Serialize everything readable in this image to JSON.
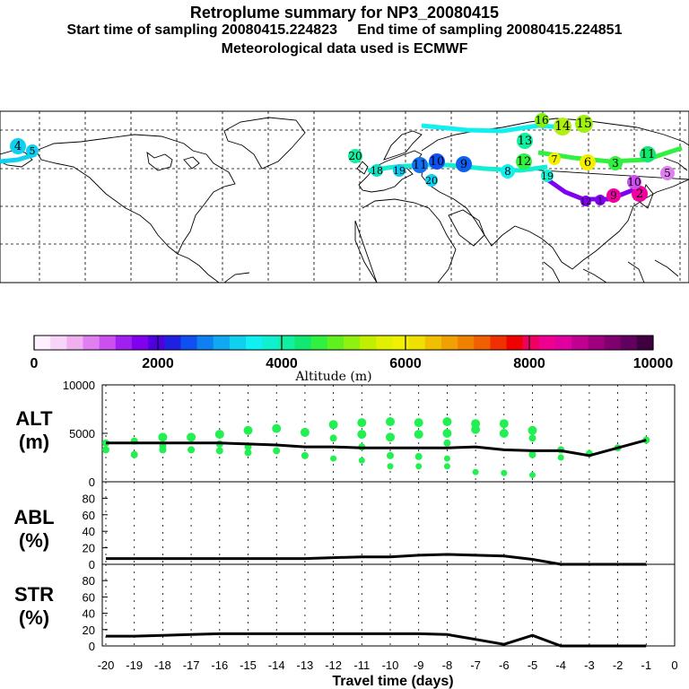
{
  "header": {
    "title": "Retroplume summary for NP3_20080415",
    "sampling_line": "Start time of sampling 20080415.224823     End time of sampling 20080415.224851",
    "met_line": "Meteorological data used is ECMWF"
  },
  "colorbar": {
    "label": "Altitude (m)",
    "ticks": [
      "0",
      "2000",
      "4000",
      "6000",
      "8000",
      "10000"
    ],
    "min": 0,
    "max": 10000,
    "colors": [
      "#fff0ff",
      "#f8d4f8",
      "#f0b0f0",
      "#e080f0",
      "#cc50f0",
      "#a020f0",
      "#8000f0",
      "#5000e0",
      "#2020e0",
      "#1050f0",
      "#1080f0",
      "#10a8f0",
      "#10d0f0",
      "#10f0f0",
      "#10f0d0",
      "#10f0a0",
      "#10e870",
      "#30f040",
      "#60f020",
      "#90f010",
      "#c0f000",
      "#e0f000",
      "#f0f000",
      "#f0e000",
      "#f0c000",
      "#f0a000",
      "#f08000",
      "#f06000",
      "#f03000",
      "#f00000",
      "#f00060",
      "#f00090",
      "#e000a0",
      "#c00090",
      "#a00080",
      "#800070",
      "#600060",
      "#400040"
    ]
  },
  "map": {
    "markers": [
      {
        "label": "4",
        "color": "#10d0f0"
      },
      {
        "label": "5",
        "color": "#10d0f0"
      },
      {
        "label": "20",
        "color": "#10f0a0"
      },
      {
        "label": "18",
        "color": "#10e0c0"
      },
      {
        "label": "19",
        "color": "#10c8f0"
      },
      {
        "label": "11",
        "color": "#1070f0"
      },
      {
        "label": "10",
        "color": "#1050f0"
      },
      {
        "label": "9",
        "color": "#1060f0"
      },
      {
        "label": "20",
        "color": "#10d0f0"
      },
      {
        "label": "16",
        "color": "#80f010"
      },
      {
        "label": "14",
        "color": "#b0f010"
      },
      {
        "label": "15",
        "color": "#a0f010"
      },
      {
        "label": "13",
        "color": "#10f0a0"
      },
      {
        "label": "12",
        "color": "#30f040"
      },
      {
        "label": "8",
        "color": "#10f0f0"
      },
      {
        "label": "7",
        "color": "#f0f000"
      },
      {
        "label": "6",
        "color": "#f0f000"
      },
      {
        "label": "3",
        "color": "#30f040"
      },
      {
        "label": "11",
        "color": "#10e870"
      },
      {
        "label": "9",
        "color": "#f000a0"
      },
      {
        "label": "2",
        "color": "#f000a0"
      },
      {
        "label": "10",
        "color": "#cc50f0"
      },
      {
        "label": "1",
        "color": "#8000f0"
      },
      {
        "label": "12",
        "color": "#8000f0"
      },
      {
        "label": "5",
        "color": "#e080f0"
      },
      {
        "label": "19",
        "color": "#10f0d0"
      }
    ]
  },
  "chart_data": [
    {
      "type": "scatter",
      "panel": "ALT",
      "ylabel": "ALT\n(m)",
      "ylim": [
        0,
        10000
      ],
      "yticks": [
        "10000",
        "5000",
        "0"
      ],
      "xlim": [
        -20,
        0
      ],
      "median_line": {
        "x": [
          -20,
          -19,
          -18,
          -17,
          -16,
          -15,
          -14,
          -13,
          -12,
          -11,
          -10,
          -9,
          -8,
          -7,
          -6,
          -5,
          -4,
          -3,
          -2,
          -1
        ],
        "y": [
          4000,
          4000,
          4000,
          4000,
          4000,
          3900,
          3800,
          3600,
          3600,
          3500,
          3500,
          3500,
          3500,
          3600,
          3300,
          3200,
          3200,
          2700,
          3500,
          4300
        ]
      },
      "points": [
        {
          "x": -20,
          "y": 4000
        },
        {
          "x": -20,
          "y": 3300
        },
        {
          "x": -19,
          "y": 4200
        },
        {
          "x": -19,
          "y": 2800
        },
        {
          "x": -18,
          "y": 4600
        },
        {
          "x": -18,
          "y": 3700
        },
        {
          "x": -18,
          "y": 3300
        },
        {
          "x": -17,
          "y": 4600
        },
        {
          "x": -17,
          "y": 3300
        },
        {
          "x": -16,
          "y": 4900
        },
        {
          "x": -16,
          "y": 3900
        },
        {
          "x": -16,
          "y": 3200
        },
        {
          "x": -15,
          "y": 5300
        },
        {
          "x": -15,
          "y": 3600
        },
        {
          "x": -15,
          "y": 3000
        },
        {
          "x": -14,
          "y": 5500
        },
        {
          "x": -14,
          "y": 3200
        },
        {
          "x": -13,
          "y": 5100
        },
        {
          "x": -13,
          "y": 2700
        },
        {
          "x": -12,
          "y": 5900
        },
        {
          "x": -12,
          "y": 4500
        },
        {
          "x": -12,
          "y": 2400
        },
        {
          "x": -11,
          "y": 6100
        },
        {
          "x": -11,
          "y": 4900
        },
        {
          "x": -11,
          "y": 3600
        },
        {
          "x": -11,
          "y": 2200
        },
        {
          "x": -10,
          "y": 6200
        },
        {
          "x": -10,
          "y": 4600
        },
        {
          "x": -10,
          "y": 2700
        },
        {
          "x": -10,
          "y": 1600
        },
        {
          "x": -9,
          "y": 6100
        },
        {
          "x": -9,
          "y": 4900
        },
        {
          "x": -9,
          "y": 2600
        },
        {
          "x": -9,
          "y": 1600
        },
        {
          "x": -8,
          "y": 6200
        },
        {
          "x": -8,
          "y": 5000
        },
        {
          "x": -8,
          "y": 4000
        },
        {
          "x": -8,
          "y": 2400
        },
        {
          "x": -8,
          "y": 1600
        },
        {
          "x": -7,
          "y": 6000
        },
        {
          "x": -7,
          "y": 5400
        },
        {
          "x": -7,
          "y": 1000
        },
        {
          "x": -6,
          "y": 6000
        },
        {
          "x": -6,
          "y": 5000
        },
        {
          "x": -6,
          "y": 900
        },
        {
          "x": -5,
          "y": 5300
        },
        {
          "x": -5,
          "y": 4500
        },
        {
          "x": -5,
          "y": 2800
        },
        {
          "x": -5,
          "y": 700
        },
        {
          "x": -4,
          "y": 3300
        },
        {
          "x": -4,
          "y": 2500
        },
        {
          "x": -3,
          "y": 2900
        },
        {
          "x": -2,
          "y": 3500
        },
        {
          "x": -1,
          "y": 4300
        }
      ]
    },
    {
      "type": "line",
      "panel": "ABL",
      "ylabel": "ABL\n(%)",
      "ylim": [
        0,
        100
      ],
      "yticks": [
        "80",
        "60",
        "40",
        "20",
        "0"
      ],
      "xlim": [
        -20,
        0
      ],
      "x": [
        -20,
        -19,
        -18,
        -17,
        -16,
        -15,
        -14,
        -13,
        -12,
        -11,
        -10,
        -9,
        -8,
        -7,
        -6,
        -5,
        -4,
        -3,
        -2,
        -1
      ],
      "y": [
        7,
        7,
        7,
        7,
        7,
        7,
        7,
        7,
        8,
        9,
        9,
        11,
        12,
        11,
        10,
        6,
        0,
        0,
        0,
        0
      ]
    },
    {
      "type": "line",
      "panel": "STR",
      "ylabel": "STR\n(%)",
      "ylim": [
        0,
        100
      ],
      "yticks": [
        "80",
        "60",
        "40",
        "20",
        "0"
      ],
      "xlim": [
        -20,
        0
      ],
      "xlabel": "Travel time (days)",
      "xticks": [
        "-20",
        "-19",
        "-18",
        "-17",
        "-16",
        "-15",
        "-14",
        "-13",
        "-12",
        "-11",
        "-10",
        "-9",
        "-8",
        "-7",
        "-6",
        "-5",
        "-4",
        "-3",
        "-2",
        "-1",
        "0"
      ],
      "x": [
        -20,
        -19,
        -18,
        -17,
        -16,
        -15,
        -14,
        -13,
        -12,
        -11,
        -10,
        -9,
        -8,
        -7,
        -6,
        -5,
        -4,
        -3,
        -2,
        -1
      ],
      "y": [
        12,
        12,
        13,
        14,
        15,
        15,
        15,
        15,
        15,
        15,
        15,
        15,
        14,
        8,
        2,
        13,
        0,
        0,
        0,
        0
      ]
    }
  ]
}
